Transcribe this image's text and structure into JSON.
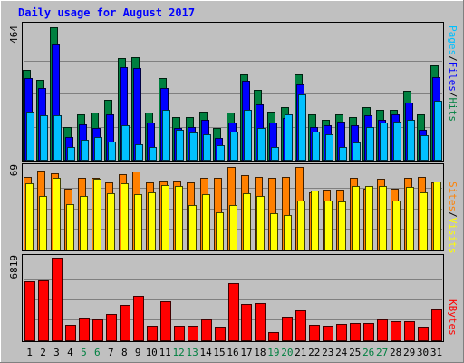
{
  "chart_data": [
    {
      "type": "bar",
      "panel": "pages-files-hits",
      "title": "Daily usage for August 2017",
      "ylabel_parts": [
        "Pages",
        "/",
        "Files",
        "/",
        "Hits"
      ],
      "ymax_label": "464",
      "ylim": [
        0,
        464
      ],
      "grid": true,
      "categories": [
        "1",
        "2",
        "3",
        "4",
        "5",
        "6",
        "7",
        "8",
        "9",
        "10",
        "11",
        "12",
        "13",
        "14",
        "15",
        "16",
        "17",
        "18",
        "19",
        "20",
        "21",
        "22",
        "23",
        "24",
        "25",
        "26",
        "27",
        "28",
        "29",
        "30",
        "31"
      ],
      "weekend_days": [
        "5",
        "6",
        "12",
        "13",
        "19",
        "20",
        "26",
        "27"
      ],
      "series": [
        {
          "name": "Hits",
          "values": [
            315,
            280,
            464,
            115,
            160,
            165,
            210,
            355,
            360,
            165,
            285,
            150,
            150,
            170,
            110,
            165,
            300,
            245,
            170,
            185,
            300,
            160,
            140,
            160,
            150,
            185,
            175,
            175,
            240,
            160,
            330
          ]
        },
        {
          "name": "Files",
          "values": [
            285,
            250,
            405,
            80,
            125,
            110,
            160,
            325,
            320,
            130,
            250,
            110,
            115,
            140,
            75,
            130,
            275,
            195,
            130,
            145,
            265,
            115,
            120,
            135,
            120,
            155,
            140,
            160,
            200,
            105,
            290
          ]
        },
        {
          "name": "Pages",
          "values": [
            170,
            155,
            155,
            45,
            70,
            80,
            65,
            120,
            55,
            45,
            175,
            105,
            95,
            90,
            50,
            100,
            175,
            110,
            45,
            160,
            230,
            100,
            90,
            45,
            60,
            115,
            130,
            135,
            140,
            85,
            205
          ]
        }
      ],
      "colors": {
        "Hits": "#008040",
        "Files": "#0000ff",
        "Pages": "#00c0ff"
      }
    },
    {
      "type": "bar",
      "panel": "sites-visits",
      "ylabel_parts": [
        "Sites",
        "/",
        "Visits"
      ],
      "ymax_label": "69",
      "ylim": [
        0,
        69
      ],
      "grid": true,
      "series": [
        {
          "name": "Visits",
          "values": [
            61,
            66,
            64,
            51,
            60,
            60,
            56,
            63,
            65,
            56,
            58,
            58,
            56,
            60,
            60,
            69,
            62,
            61,
            60,
            61,
            69,
            48,
            50,
            50,
            60,
            51,
            59,
            51,
            60,
            61,
            56
          ]
        },
        {
          "name": "Sites",
          "values": [
            55,
            45,
            60,
            38,
            45,
            59,
            47,
            55,
            46,
            48,
            54,
            53,
            37,
            46,
            31,
            37,
            47,
            45,
            30,
            29,
            41,
            49,
            41,
            40,
            53,
            53,
            53,
            41,
            52,
            48,
            57
          ]
        }
      ],
      "colors": {
        "Visits": "#ff8000",
        "Sites": "#ffff00"
      }
    },
    {
      "type": "bar",
      "panel": "kbytes",
      "ylabel_parts": [
        "KBytes"
      ],
      "ymax_label": "6819",
      "ylim": [
        0,
        6819
      ],
      "grid": true,
      "series": [
        {
          "name": "KBytes",
          "values": [
            4900,
            4950,
            6819,
            1250,
            1900,
            1750,
            2150,
            2900,
            3650,
            1200,
            3200,
            1200,
            1200,
            1750,
            1150,
            4750,
            3000,
            3100,
            650,
            1950,
            2500,
            1250,
            1200,
            1350,
            1400,
            1450,
            1750,
            1600,
            1550,
            1150,
            2550
          ]
        }
      ],
      "colors": {
        "KBytes": "#ff0000"
      }
    }
  ]
}
